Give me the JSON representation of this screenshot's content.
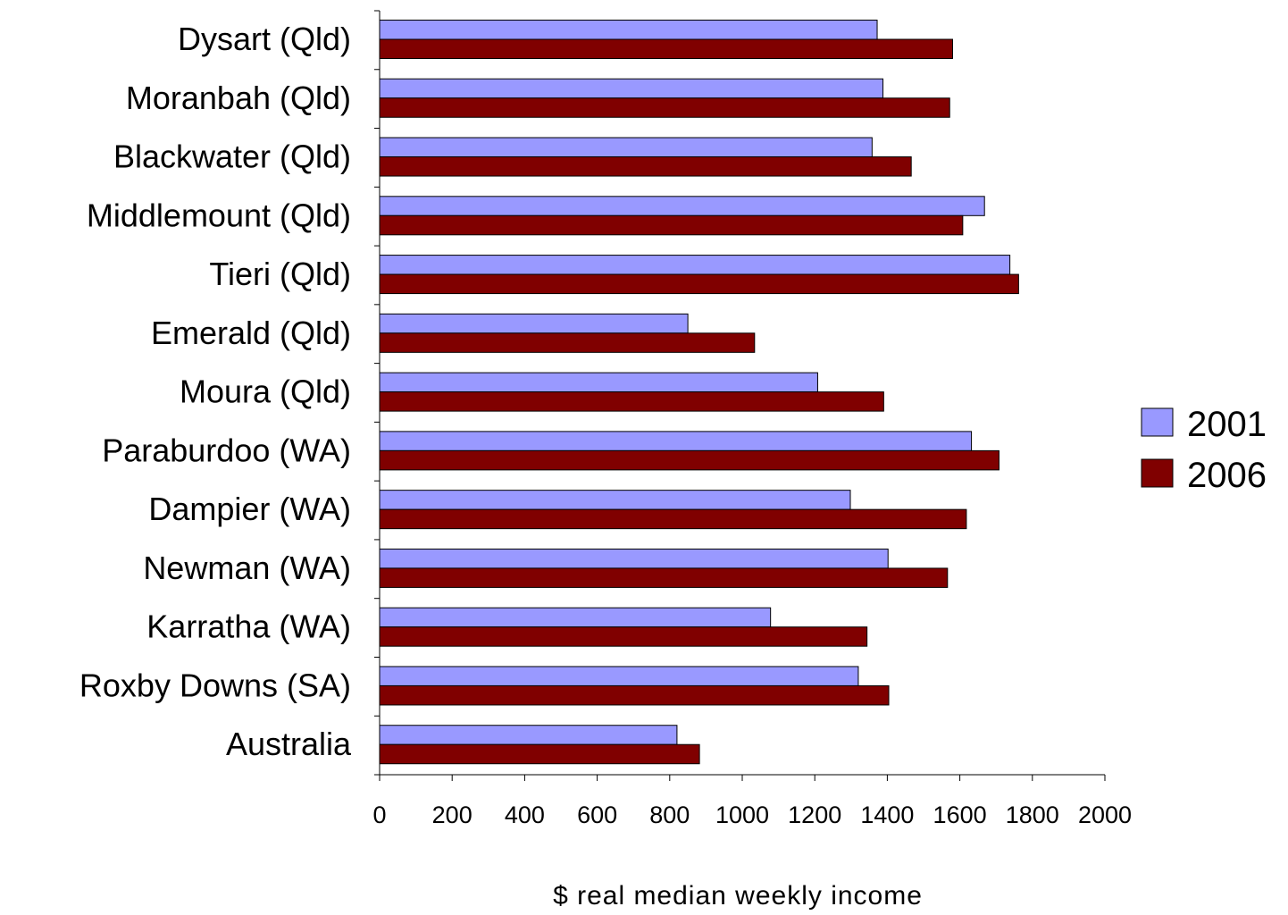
{
  "chart_data": {
    "type": "bar",
    "orientation": "horizontal",
    "title": "",
    "xlabel": "$ real median weekly income",
    "ylabel": "",
    "categories": [
      "Dysart (Qld)",
      "Moranbah (Qld)",
      "Blackwater (Qld)",
      "Middlemount (Qld)",
      "Tieri (Qld)",
      "Emerald (Qld)",
      "Moura (Qld)",
      "Paraburdoo (WA)",
      "Dampier (WA)",
      "Newman (WA)",
      "Karratha (WA)",
      "Roxby Downs (SA)",
      "Australia"
    ],
    "series": [
      {
        "name": "2001",
        "color": "#9999ff",
        "values": [
          1372,
          1388,
          1358,
          1668,
          1738,
          850,
          1208,
          1632,
          1298,
          1402,
          1078,
          1320,
          820
        ]
      },
      {
        "name": "2006",
        "color": "#800000",
        "values": [
          1580,
          1572,
          1466,
          1608,
          1762,
          1034,
          1390,
          1708,
          1618,
          1566,
          1344,
          1404,
          882
        ]
      }
    ],
    "xlim": [
      0,
      2000
    ],
    "x_ticks": [
      "0",
      "200",
      "400",
      "600",
      "800",
      "1000",
      "1200",
      "1400",
      "1600",
      "1800",
      "2000"
    ],
    "grid": false,
    "legend_position": "right"
  }
}
